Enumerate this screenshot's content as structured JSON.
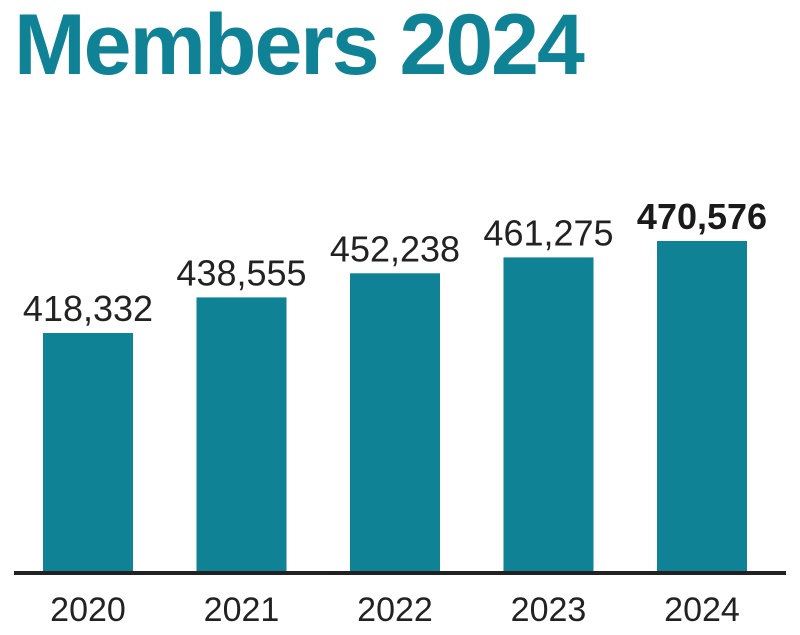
{
  "chart_data": {
    "type": "bar",
    "title": "Members 2024",
    "categories": [
      "2020",
      "2021",
      "2022",
      "2023",
      "2024"
    ],
    "values": [
      418332,
      438555,
      452238,
      461275,
      470576
    ],
    "value_labels": [
      "418,332",
      "438,555",
      "452,238",
      "461,275",
      "470,576"
    ],
    "highlight_index": 4,
    "xlabel": "",
    "ylabel": "",
    "grid": false,
    "legend": "none",
    "bar_color": "#0f8296",
    "title_color": "#0f8296",
    "axis_color": "#222222"
  }
}
